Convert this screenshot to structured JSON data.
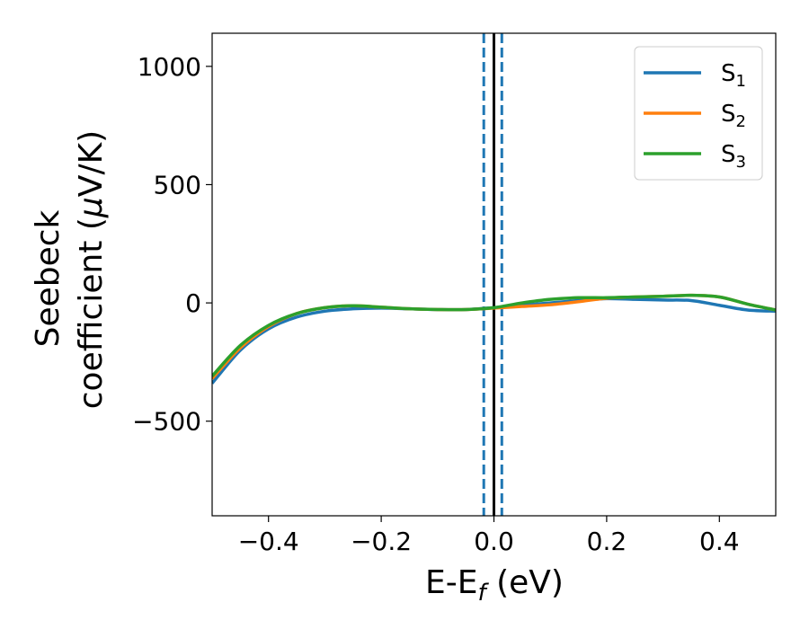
{
  "chart_data": {
    "type": "line",
    "xlabel": "E-E",
    "xlabel_sub": "f",
    "xlabel_unit": " (eV)",
    "ylabel_line1": "Seebeck",
    "ylabel_line2": "coefficient  (",
    "ylabel_mu": "μ",
    "ylabel_unit": "V/K)",
    "xlim": [
      -0.5,
      0.5
    ],
    "ylim": [
      -900,
      1140
    ],
    "xticks": [
      -0.4,
      -0.2,
      0.0,
      0.2,
      0.4
    ],
    "xtick_labels": [
      "−0.4",
      "−0.2",
      "0.0",
      "0.2",
      "0.4"
    ],
    "yticks": [
      -500,
      0,
      500,
      1000
    ],
    "ytick_labels": [
      "−500",
      "0",
      "500",
      "1000"
    ],
    "grid": false,
    "legend_position": "top-right",
    "vertical_lines": [
      {
        "x": 0.0,
        "style": "solid",
        "color": "#000000"
      },
      {
        "x": -0.018,
        "style": "dashed",
        "color": "#1f77b4"
      },
      {
        "x": 0.014,
        "style": "dashed",
        "color": "#1f77b4"
      }
    ],
    "series": [
      {
        "name": "S",
        "sub": "1",
        "color": "#1f77b4",
        "x": [
          -0.5,
          -0.45,
          -0.4,
          -0.35,
          -0.3,
          -0.25,
          -0.2,
          -0.15,
          -0.1,
          -0.05,
          0.0,
          0.05,
          0.1,
          0.15,
          0.2,
          0.25,
          0.3,
          0.35,
          0.4,
          0.45,
          0.5
        ],
        "y": [
          -340,
          -200,
          -110,
          -60,
          -35,
          -25,
          -22,
          -25,
          -28,
          -28,
          -20,
          -10,
          0,
          10,
          18,
          15,
          12,
          10,
          -10,
          -30,
          -35
        ]
      },
      {
        "name": "S",
        "sub": "2",
        "color": "#ff7f0e",
        "x": [
          -0.5,
          -0.45,
          -0.4,
          -0.35,
          -0.3,
          -0.25,
          -0.2,
          -0.15,
          -0.1,
          -0.05,
          0.0,
          0.05,
          0.1,
          0.15,
          0.2,
          0.25,
          0.3,
          0.35,
          0.4,
          0.45,
          0.5
        ],
        "y": [
          -320,
          -190,
          -100,
          -45,
          -20,
          -12,
          -18,
          -25,
          -28,
          -28,
          -22,
          -15,
          -8,
          5,
          20,
          25,
          28,
          32,
          25,
          -5,
          -30
        ]
      },
      {
        "name": "S",
        "sub": "3",
        "color": "#2ca02c",
        "x": [
          -0.5,
          -0.45,
          -0.4,
          -0.35,
          -0.3,
          -0.25,
          -0.2,
          -0.15,
          -0.1,
          -0.05,
          0.0,
          0.05,
          0.1,
          0.15,
          0.2,
          0.25,
          0.3,
          0.35,
          0.4,
          0.45,
          0.5
        ],
        "y": [
          -310,
          -180,
          -95,
          -45,
          -20,
          -12,
          -18,
          -25,
          -28,
          -28,
          -20,
          0,
          15,
          22,
          22,
          25,
          28,
          32,
          25,
          -5,
          -30
        ]
      }
    ]
  }
}
